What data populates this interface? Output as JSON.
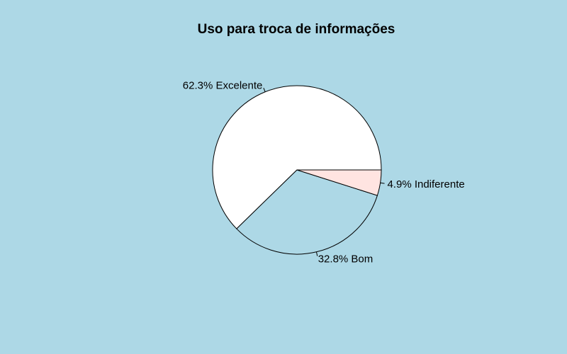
{
  "chart_data": {
    "type": "pie",
    "title": "Uso para troca de informações",
    "background_color": "#add8e6",
    "slices": [
      {
        "label": "62.3% Excelente",
        "category": "Excelente",
        "value": 62.3,
        "color": "#ffffff"
      },
      {
        "label": "32.8% Bom",
        "category": "Bom",
        "value": 32.8,
        "color": "#add8e6"
      },
      {
        "label": "4.9% Indiferente",
        "category": "Indiferente",
        "value": 4.9,
        "color": "#ffe4e1"
      }
    ],
    "direction": "counterclockwise",
    "start_angle_degrees": 0
  }
}
